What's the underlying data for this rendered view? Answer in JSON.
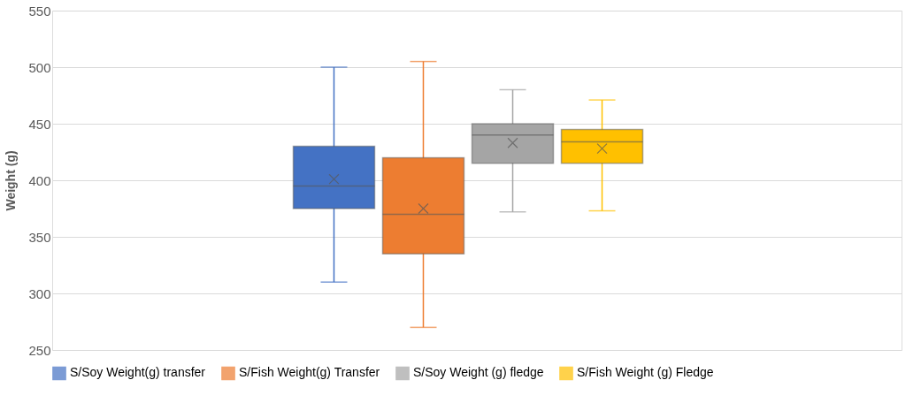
{
  "chart_data": {
    "type": "box",
    "ylabel": "Weight (g)",
    "categories": [
      null
    ],
    "series": [
      {
        "name": "S/Soy Weight(g) transfer",
        "color": "#4472c4",
        "boxes": [
          {
            "low": 310,
            "q1": 375,
            "median": 395,
            "q3": 430,
            "high": 500,
            "mean": 401
          }
        ]
      },
      {
        "name": "S/Fish Weight(g) Transfer",
        "color": "#ed7d31",
        "boxes": [
          {
            "low": 270,
            "q1": 335,
            "median": 370,
            "q3": 420,
            "high": 505,
            "mean": 375
          }
        ]
      },
      {
        "name": "S/Soy Weight (g) fledge",
        "color": "#a5a5a5",
        "boxes": [
          {
            "low": 372,
            "q1": 415,
            "median": 440,
            "q3": 450,
            "high": 480,
            "mean": 433
          }
        ]
      },
      {
        "name": "S/Fish Weight (g) Fledge",
        "color": "#ffc000",
        "boxes": [
          {
            "low": 373,
            "q1": 415,
            "median": 434,
            "q3": 445,
            "high": 471,
            "mean": 428
          }
        ]
      }
    ],
    "ylim": [
      250,
      550
    ],
    "yticks": [
      250,
      300,
      350,
      400,
      450,
      500,
      550
    ],
    "grid": "y",
    "legend": "bottom",
    "tick_labels": "y"
  }
}
